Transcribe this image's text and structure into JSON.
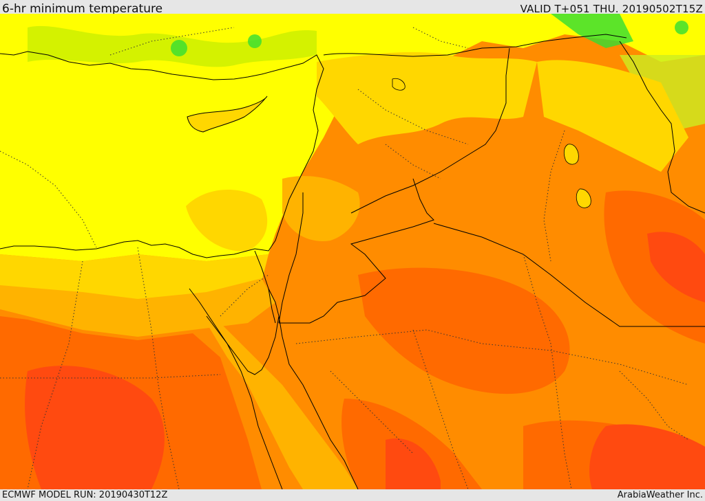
{
  "header": {
    "title": "6-hr minimum temperature",
    "valid": "VALID T+051 THU. 20190502T15Z"
  },
  "footer": {
    "model_run": "ECMWF MODEL RUN: 20190430T12Z",
    "credit": "ArabiaWeather Inc."
  },
  "palette": {
    "green": "#33dd33",
    "light_green": "#99ee22",
    "yellow": "#ffff00",
    "yellow_orange": "#ffd700",
    "light_orange": "#ffb300",
    "orange": "#ff8c00",
    "dark_orange": "#ff6a00",
    "red_orange": "#ff4a10",
    "border": "#000000"
  }
}
